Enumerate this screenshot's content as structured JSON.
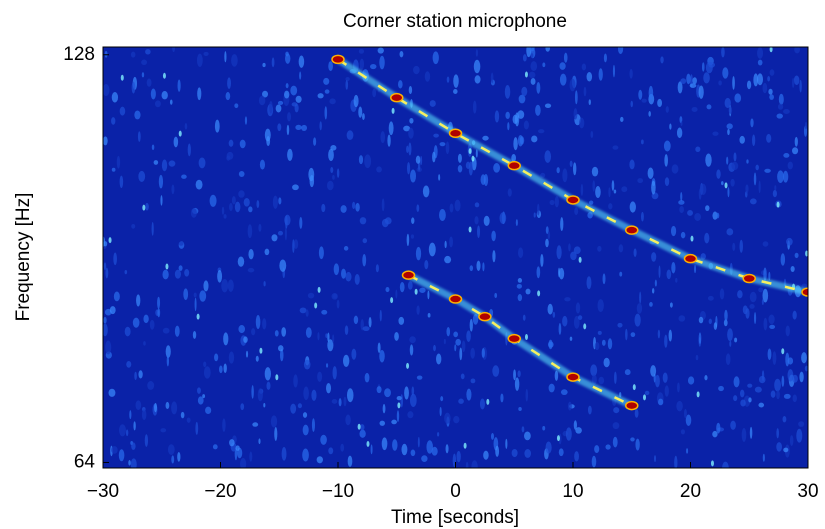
{
  "chart_data": {
    "type": "spectrogram",
    "title": "Corner station microphone",
    "xlabel": "Time [seconds]",
    "ylabel": "Frequency [Hz]",
    "xlim": [
      -30,
      30
    ],
    "xticks": [
      {
        "value": -30,
        "label": "−30"
      },
      {
        "value": -20,
        "label": "−20"
      },
      {
        "value": -10,
        "label": "−10"
      },
      0,
      10,
      20,
      30
    ],
    "ylim": [
      63.4,
      129.7
    ],
    "yticks": [
      64,
      128
    ],
    "log_y": true,
    "background_color": "#0a22a8",
    "series": [
      {
        "color": "#5fe8ff",
        "x": [
          -10,
          -5,
          0,
          5,
          10,
          15,
          20,
          25,
          30
        ],
        "values": [
          127,
          119,
          112,
          106,
          100,
          95,
          90.5,
          87.5,
          85.5
        ]
      },
      {
        "color": "#5fe8ff",
        "x": [
          -4,
          0,
          2.5,
          5,
          10,
          15
        ],
        "values": [
          88,
          84.5,
          82,
          79,
          74,
          70.5
        ]
      }
    ]
  }
}
